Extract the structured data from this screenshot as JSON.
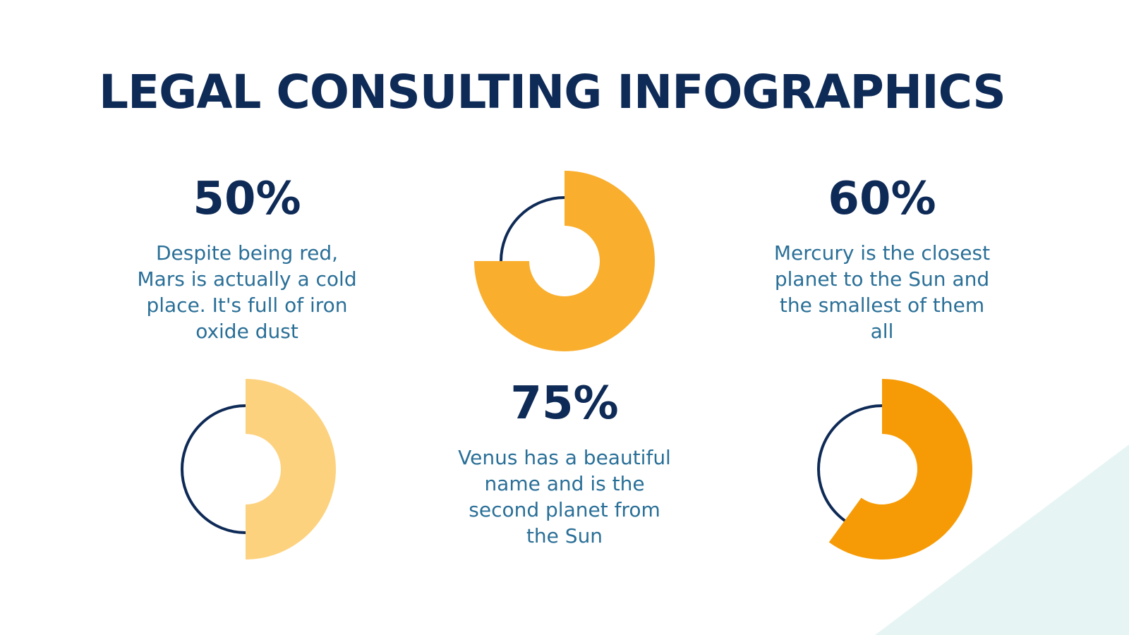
{
  "title": "LEGAL CONSULTING INFOGRAPHICS",
  "colors": {
    "title": "#0e2a56",
    "text": "#2a6f97",
    "ring": "#0e2a56",
    "corner": "#e6f5f3"
  },
  "chart_data": [
    {
      "type": "pie",
      "value_label": "50%",
      "value": 50,
      "description": "Despite being red, Mars is actually a cold place. It's full of iron oxide dust",
      "color": "#fdd27e"
    },
    {
      "type": "pie",
      "value_label": "75%",
      "value": 75,
      "description": "Venus has a beautiful name and is the second planet from the Sun",
      "color": "#f9ae2d"
    },
    {
      "type": "pie",
      "value_label": "60%",
      "value": 60,
      "description": "Mercury is the closest planet to the Sun and the smallest of them all",
      "color": "#f69b06"
    }
  ]
}
